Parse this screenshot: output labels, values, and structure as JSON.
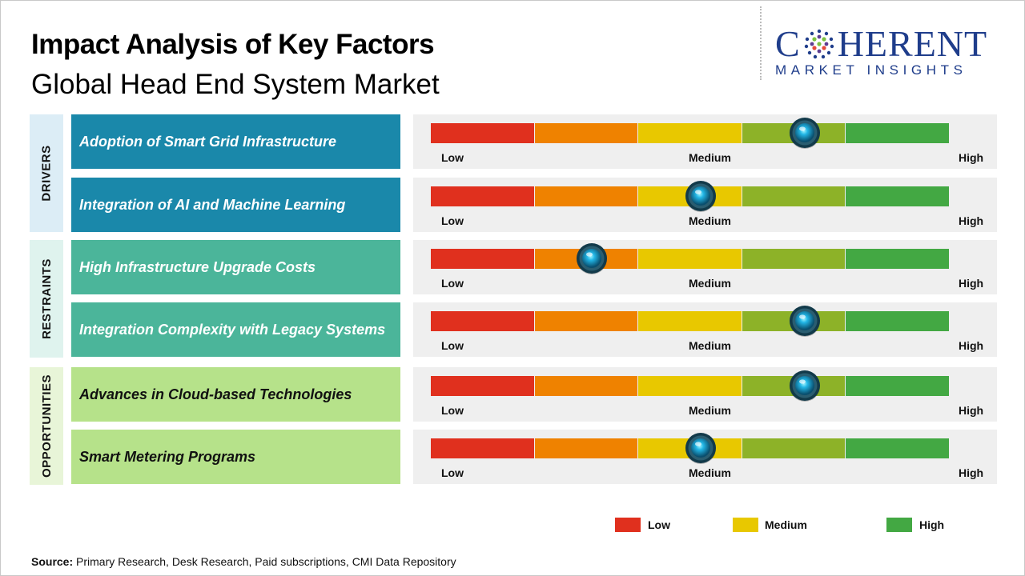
{
  "title": "Impact Analysis of Key Factors",
  "subtitle": "Global Head End System Market",
  "logo": {
    "word_pre": "C",
    "word_post": "HERENT",
    "sub": "MARKET INSIGHTS"
  },
  "colors": {
    "low": "#e0301e",
    "low_medium": "#ef8200",
    "medium": "#e8c800",
    "medium_high": "#8db228",
    "high": "#43a843",
    "drivers_label_bg": "#dcedf6",
    "drivers_row_bg": "#1a88aa",
    "restraints_label_bg": "#dff3ee",
    "restraints_row_bg": "#4bb59a",
    "opportunities_label_bg": "#e8f5d8",
    "opportunities_row_bg": "#b6e28a",
    "knob": "#0d6f93"
  },
  "scale_labels": {
    "low": "Low",
    "medium": "Medium",
    "high": "High"
  },
  "chart_data": {
    "type": "table",
    "scale": [
      "Low",
      "Medium",
      "High"
    ],
    "groups": [
      {
        "name": "DRIVERS",
        "factors": [
          {
            "name": "Adoption of Smart Grid Infrastructure",
            "impact": 0.72
          },
          {
            "name": "Integration of AI and Machine Learning",
            "impact": 0.52
          }
        ]
      },
      {
        "name": "RESTRAINTS",
        "factors": [
          {
            "name": "High Infrastructure Upgrade Costs",
            "impact": 0.31
          },
          {
            "name": "Integration Complexity with Legacy Systems",
            "impact": 0.72
          }
        ]
      },
      {
        "name": "OPPORTUNITIES",
        "factors": [
          {
            "name": "Advances in Cloud-based Technologies",
            "impact": 0.72
          },
          {
            "name": "Smart Metering Programs",
            "impact": 0.52
          }
        ]
      }
    ],
    "legend": [
      "Low",
      "Medium",
      "High"
    ]
  },
  "source": {
    "label": "Source:",
    "text": "Primary Research, Desk Research, Paid subscriptions, CMI Data Repository"
  }
}
